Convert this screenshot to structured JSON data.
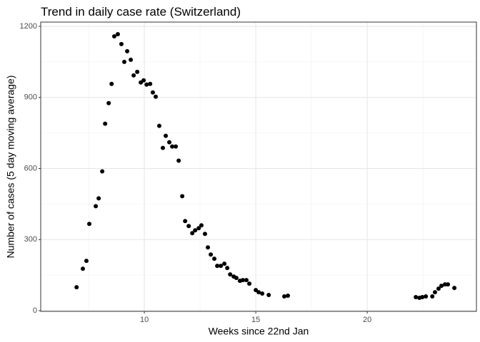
{
  "chart_data": {
    "type": "scatter",
    "title": "Trend in daily case rate (Switzerland)",
    "x_label": "Weeks since 22nd Jan",
    "y_label": "Number of cases (5 day moving average)",
    "xlim": [
      5.35,
      24.9
    ],
    "ylim": [
      -3,
      1218
    ],
    "xticks": [
      10,
      15,
      20
    ],
    "yticks": [
      0,
      300,
      600,
      900,
      1200
    ],
    "x_minor_grid": [
      7.5,
      12.5,
      17.5,
      22.5
    ],
    "y_minor_grid": [
      150,
      450,
      750,
      1050
    ],
    "grid": true,
    "color": "#000000",
    "x": [
      6.96,
      7.24,
      7.4,
      7.53,
      7.82,
      7.95,
      8.11,
      8.24,
      8.4,
      8.53,
      8.65,
      8.81,
      8.97,
      9.1,
      9.23,
      9.39,
      9.52,
      9.68,
      9.84,
      9.97,
      10.1,
      10.26,
      10.38,
      10.51,
      10.67,
      10.83,
      10.96,
      11.12,
      11.25,
      11.41,
      11.54,
      11.7,
      11.83,
      11.99,
      12.15,
      12.28,
      12.44,
      12.56,
      12.72,
      12.85,
      12.98,
      13.14,
      13.27,
      13.43,
      13.59,
      13.72,
      13.85,
      14.01,
      14.13,
      14.29,
      14.42,
      14.58,
      14.71,
      15.0,
      15.13,
      15.29,
      15.58,
      16.28,
      16.44,
      22.18,
      22.34,
      22.47,
      22.63,
      22.92,
      23.04,
      23.2,
      23.33,
      23.49,
      23.62,
      23.91
    ],
    "values": [
      99,
      177,
      210,
      366,
      441,
      474,
      588,
      789,
      876,
      957,
      1158,
      1167,
      1125,
      1050,
      1095,
      1059,
      993,
      1008,
      963,
      972,
      954,
      957,
      921,
      903,
      780,
      687,
      738,
      711,
      693,
      693,
      633,
      483,
      378,
      357,
      327,
      339,
      348,
      360,
      324,
      267,
      237,
      219,
      189,
      189,
      198,
      180,
      153,
      144,
      138,
      126,
      129,
      129,
      114,
      87,
      78,
      72,
      66,
      60,
      63,
      57,
      54,
      57,
      60,
      60,
      78,
      93,
      105,
      111,
      111,
      96
    ]
  }
}
